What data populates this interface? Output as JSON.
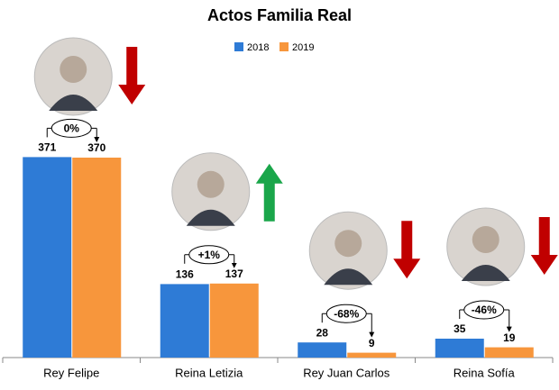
{
  "chart_data": {
    "type": "bar",
    "title": "Actos Familia Real",
    "categories": [
      "Rey Felipe",
      "Reina Letizia",
      "Rey Juan Carlos",
      "Reina Sofía"
    ],
    "series": [
      {
        "name": "2018",
        "color": "#2e7bd6",
        "values": [
          371,
          136,
          28,
          35
        ]
      },
      {
        "name": "2019",
        "color": "#f7963c",
        "values": [
          370,
          137,
          9,
          19
        ]
      }
    ],
    "annotations": [
      "0%",
      "+1%",
      "-68%",
      "-46%"
    ],
    "trend_arrows": [
      {
        "direction": "down",
        "color": "#c00000"
      },
      {
        "direction": "up",
        "color": "#1aa64a"
      },
      {
        "direction": "down",
        "color": "#c00000"
      },
      {
        "direction": "down",
        "color": "#c00000"
      }
    ],
    "legend": "top"
  }
}
